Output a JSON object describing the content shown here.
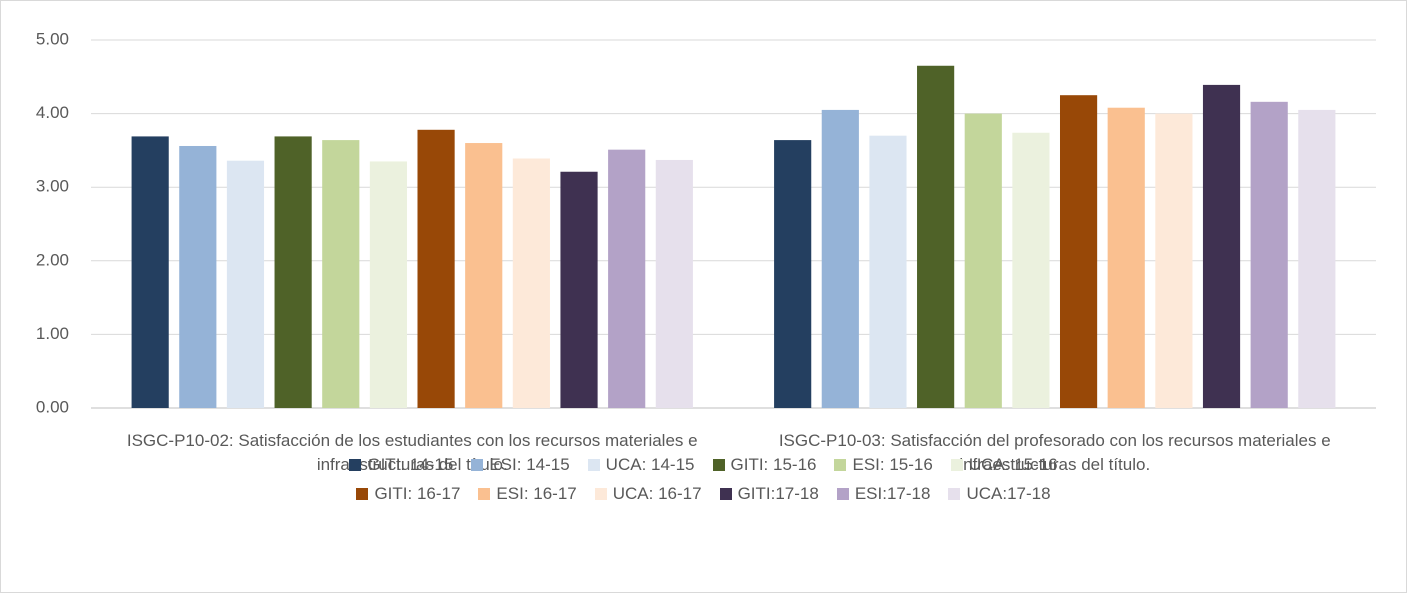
{
  "chart_data": {
    "type": "bar",
    "categories": [
      "ISGC-P10-02: Satisfacción de los estudiantes con los recursos materiales e infraestructuras del título.",
      "ISGC-P10-03: Satisfacción del profesorado con los recursos materiales e infraestructuras del título."
    ],
    "series": [
      {
        "name": "GITI: 14-15",
        "color": "#243f60",
        "values": [
          3.69,
          3.64
        ]
      },
      {
        "name": "ESI: 14-15",
        "color": "#95b3d7",
        "values": [
          3.56,
          4.05
        ]
      },
      {
        "name": "UCA: 14-15",
        "color": "#dce6f2",
        "values": [
          3.36,
          3.7
        ]
      },
      {
        "name": "GITI: 15-16",
        "color": "#4f6228",
        "values": [
          3.69,
          4.65
        ]
      },
      {
        "name": "ESI: 15-16",
        "color": "#c3d69b",
        "values": [
          3.64,
          4.0
        ]
      },
      {
        "name": "UCA: 15-16",
        "color": "#ebf1de",
        "values": [
          3.35,
          3.74
        ]
      },
      {
        "name": "GITI: 16-17",
        "color": "#984807",
        "values": [
          3.78,
          4.25
        ]
      },
      {
        "name": "ESI: 16-17",
        "color": "#fac090",
        "values": [
          3.6,
          4.08
        ]
      },
      {
        "name": "UCA: 16-17",
        "color": "#fde9d9",
        "values": [
          3.39,
          4.0
        ]
      },
      {
        "name": "GITI:17-18",
        "color": "#3f3151",
        "values": [
          3.21,
          4.39
        ]
      },
      {
        "name": "ESI:17-18",
        "color": "#b3a2c7",
        "values": [
          3.51,
          4.16
        ]
      },
      {
        "name": "UCA:17-18",
        "color": "#e6e0ec",
        "values": [
          3.37,
          4.05
        ]
      }
    ],
    "ylim": [
      0,
      5
    ],
    "yticks": [
      {
        "value": 0,
        "label": "0.00"
      },
      {
        "value": 1,
        "label": "1.00"
      },
      {
        "value": 2,
        "label": "2.00"
      },
      {
        "value": 3,
        "label": "3.00"
      },
      {
        "value": 4,
        "label": "4.00"
      },
      {
        "value": 5,
        "label": "5.00"
      }
    ],
    "grid": true,
    "legend": "bottom"
  }
}
